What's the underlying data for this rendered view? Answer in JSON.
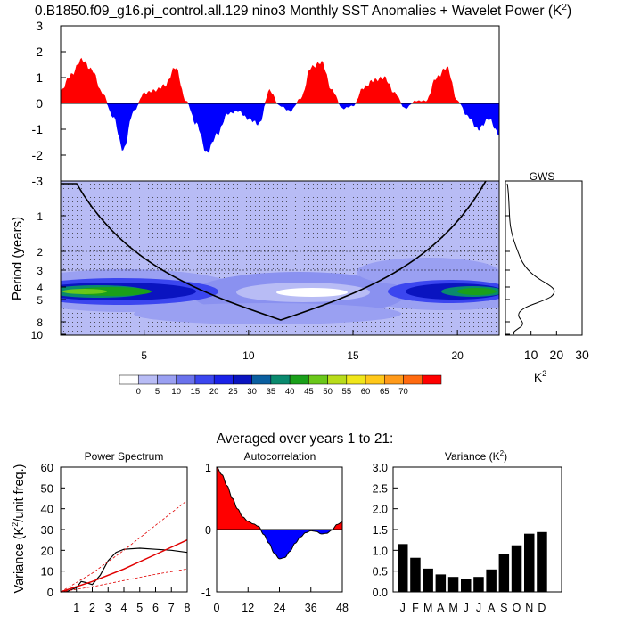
{
  "title": "0.B1850.f09_g16.pi_control.all.129 nino3 Monthly SST Anomalies + Wavelet Power (K",
  "title_sup": "2",
  "title_end": ")",
  "timeseries": {
    "yticks": [
      "3",
      "2",
      "1",
      "0",
      "-1",
      "-2",
      "-3"
    ],
    "pos_color": "#ff0000",
    "neg_color": "#0000ff",
    "ylim": [
      -3,
      3
    ],
    "xlim": [
      1,
      22
    ]
  },
  "wavelet": {
    "ylabel": "Period (years)",
    "yticks": [
      "1",
      "2",
      "3",
      "4",
      "5",
      "8",
      "10"
    ],
    "xticks": [
      "5",
      "10",
      "15",
      "20"
    ],
    "xlim": [
      1,
      22
    ],
    "cone_vertex": {
      "year": 11.5,
      "period": 8
    }
  },
  "gws": {
    "title": "GWS",
    "xticks": [
      "10",
      "20",
      "30"
    ],
    "xlabel": "K",
    "xlabel_sup": "2",
    "xlim": [
      0,
      30
    ]
  },
  "colorbar": {
    "labels": [
      "0",
      "5",
      "10",
      "15",
      "20",
      "25",
      "30",
      "35",
      "40",
      "45",
      "50",
      "55",
      "60",
      "65",
      "70"
    ],
    "colors": [
      "#ffffff",
      "#b8bcf5",
      "#9aa0f2",
      "#6a72ec",
      "#3b46ef",
      "#1a22e8",
      "#0a14c0",
      "#0a5fa0",
      "#0a8a6e",
      "#1aa01a",
      "#6ac81a",
      "#b8dc1a",
      "#f0e61a",
      "#ffc81a",
      "#ff9a1a",
      "#ff6a10",
      "#ff0000"
    ]
  },
  "averaged_title": "Averaged over years 1 to 21:",
  "bottom_ylabel_pre": "Variance (K",
  "bottom_ylabel_sup": "2",
  "bottom_ylabel_post": "/unit freq.)",
  "power_spectrum": {
    "title": "Power Spectrum",
    "yticks": [
      "60",
      "50",
      "40",
      "30",
      "20",
      "10",
      "0"
    ],
    "xticks": [
      "1",
      "2",
      "3",
      "4",
      "5",
      "6",
      "7",
      "8"
    ],
    "ylim": [
      0,
      60
    ],
    "xlim": [
      0,
      8
    ]
  },
  "autocorrelation": {
    "title": "Autocorrelation",
    "yticks": [
      "1",
      "0",
      "-1"
    ],
    "xticks": [
      "0",
      "12",
      "24",
      "36",
      "48"
    ],
    "ylim": [
      -1,
      1
    ],
    "xlim": [
      0,
      48
    ]
  },
  "variance": {
    "title": "Variance (K",
    "title_sup": "2",
    "title_end": ")",
    "yticks": [
      "3.0",
      "2.5",
      "2.0",
      "1.5",
      "1.0",
      "0.5",
      "0.0"
    ],
    "ylim": [
      0,
      3
    ],
    "months": [
      "J",
      "F",
      "M",
      "A",
      "M",
      "J",
      "J",
      "A",
      "S",
      "O",
      "N",
      "D"
    ],
    "values": [
      1.15,
      0.82,
      0.56,
      0.42,
      0.36,
      0.32,
      0.36,
      0.54,
      0.9,
      1.12,
      1.4,
      1.44
    ]
  },
  "chart_data": [
    {
      "type": "area",
      "title": "0.B1850.f09_g16.pi_control.all.129 nino3 Monthly SST Anomalies",
      "xlabel": "",
      "ylabel": "",
      "ylim": [
        -3,
        3
      ],
      "x": [
        1,
        1.5,
        2,
        2.5,
        3,
        3.5,
        4,
        4.5,
        5,
        5.5,
        6,
        6.5,
        7,
        7.5,
        8,
        8.5,
        9,
        9.5,
        10,
        10.5,
        11,
        11.5,
        12,
        12.5,
        13,
        13.5,
        14,
        14.5,
        15,
        15.5,
        16,
        16.5,
        17,
        17.5,
        18,
        18.5,
        19,
        19.5,
        20,
        20.5,
        21,
        21.5,
        22
      ],
      "y": [
        0.5,
        1.1,
        1.7,
        1.3,
        0.4,
        -0.5,
        -1.8,
        -0.3,
        0.4,
        0.5,
        0.7,
        1.4,
        0.1,
        -0.8,
        -1.9,
        -1.2,
        -0.4,
        -0.3,
        -0.6,
        -0.8,
        0.5,
        -0.1,
        -0.3,
        0.2,
        1.4,
        1.6,
        0.5,
        -0.2,
        -0.1,
        0.6,
        0.9,
        1.0,
        0.4,
        -0.2,
        0.1,
        0.1,
        1.0,
        1.4,
        0.1,
        -0.5,
        -1.0,
        -0.6,
        -1.2
      ]
    },
    {
      "type": "heatmap",
      "title": "Wavelet Power",
      "ylabel": "Period (years)",
      "xlim": [
        1,
        22
      ],
      "ylim": [
        0.5,
        10
      ],
      "units": "K^2",
      "max_power_band_period": [
        4,
        5
      ],
      "levels": [
        0,
        5,
        10,
        15,
        20,
        25,
        30,
        35,
        40,
        45,
        50,
        55,
        60,
        65,
        70
      ]
    },
    {
      "type": "line",
      "title": "GWS",
      "xlabel": "K^2",
      "xlim": [
        0,
        30
      ],
      "y_period": [
        0.5,
        1,
        2,
        3,
        3.5,
        4,
        4.5,
        5,
        6,
        8,
        10
      ],
      "x_power": [
        1,
        0.5,
        1,
        2.5,
        6,
        14,
        21,
        9,
        4,
        2,
        3
      ]
    },
    {
      "type": "line",
      "title": "Power Spectrum",
      "ylabel": "Variance (K^2/unit freq.)",
      "xlim": [
        0,
        8
      ],
      "ylim": [
        0,
        60
      ],
      "series": [
        {
          "x": [
            0,
            0.5,
            1,
            1.3,
            1.6,
            2,
            2.5,
            3,
            3.5,
            4,
            5,
            6,
            7,
            8
          ],
          "values": [
            0,
            0.5,
            2,
            5,
            4.5,
            3.5,
            8,
            15,
            19,
            20.5,
            21,
            20.5,
            20,
            19
          ]
        },
        {
          "x": [
            0,
            2,
            4,
            6,
            8
          ],
          "values": [
            0,
            5,
            11,
            18,
            25
          ]
        },
        {
          "x": [
            0,
            2,
            4,
            6,
            8
          ],
          "values": [
            0,
            9,
            20,
            32,
            44
          ]
        },
        {
          "x": [
            0,
            2,
            4,
            6,
            8
          ],
          "values": [
            0,
            2.5,
            5.5,
            8.5,
            11
          ]
        }
      ]
    },
    {
      "type": "area",
      "title": "Autocorrelation",
      "xlim": [
        0,
        48
      ],
      "ylim": [
        -1,
        1
      ],
      "x": [
        0,
        2,
        4,
        6,
        8,
        10,
        12,
        14,
        16,
        18,
        20,
        22,
        24,
        26,
        28,
        30,
        32,
        34,
        36,
        38,
        40,
        42,
        44,
        46,
        48
      ],
      "y": [
        1,
        0.88,
        0.7,
        0.5,
        0.33,
        0.2,
        0.13,
        0.09,
        0.05,
        -0.08,
        -0.22,
        -0.38,
        -0.47,
        -0.45,
        -0.35,
        -0.22,
        -0.12,
        -0.05,
        -0.02,
        -0.03,
        -0.07,
        -0.06,
        -0.01,
        0.08,
        0.12
      ]
    },
    {
      "type": "bar",
      "title": "Variance (K^2)",
      "categories": [
        "J",
        "F",
        "M",
        "A",
        "M",
        "J",
        "J",
        "A",
        "S",
        "O",
        "N",
        "D"
      ],
      "values": [
        1.15,
        0.82,
        0.56,
        0.42,
        0.36,
        0.32,
        0.36,
        0.54,
        0.9,
        1.12,
        1.4,
        1.44
      ],
      "ylim": [
        0,
        3
      ]
    }
  ]
}
